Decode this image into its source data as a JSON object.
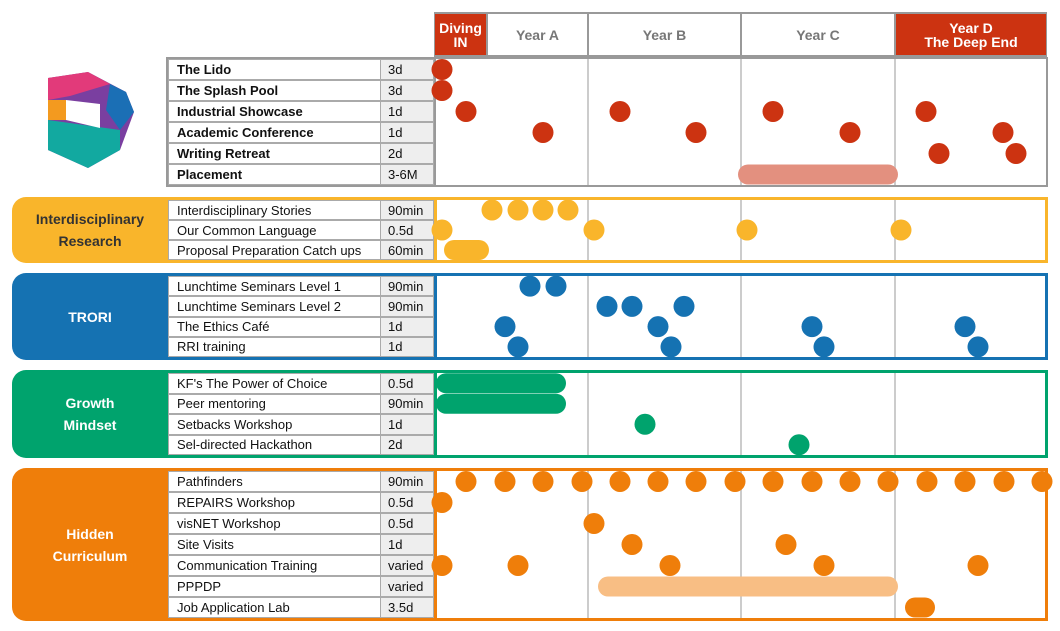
{
  "header": {
    "columns": [
      "Diving\nIN",
      "Year A",
      "Year B",
      "Year C",
      "Year D\nThe Deep End"
    ]
  },
  "sections": [
    {
      "rows": [
        {
          "name": "The Lido",
          "duration": "3d"
        },
        {
          "name": "The Splash Pool",
          "duration": "3d"
        },
        {
          "name": "Industrial Showcase",
          "duration": "1d"
        },
        {
          "name": "Academic Conference",
          "duration": "1d"
        },
        {
          "name": "Writing Retreat",
          "duration": "2d"
        },
        {
          "name": "Placement",
          "duration": "3-6M"
        }
      ]
    },
    {
      "label": "Interdisciplinary\nResearch",
      "rows": [
        {
          "name": "Interdisciplinary Stories",
          "duration": "90min"
        },
        {
          "name": "Our Common Language",
          "duration": "0.5d"
        },
        {
          "name": "Proposal Preparation Catch ups",
          "duration": "60min"
        }
      ]
    },
    {
      "label": "TRORI",
      "rows": [
        {
          "name": "Lunchtime  Seminars Level 1",
          "duration": "90min"
        },
        {
          "name": "Lunchtime Seminars Level 2",
          "duration": "90min"
        },
        {
          "name": "The Ethics Café",
          "duration": "1d"
        },
        {
          "name": "RRI training",
          "duration": "1d"
        }
      ]
    },
    {
      "label": "Growth\nMindset",
      "rows": [
        {
          "name": "KF's The Power of Choice",
          "duration": "0.5d"
        },
        {
          "name": "Peer mentoring",
          "duration": "90min"
        },
        {
          "name": "Setbacks Workshop",
          "duration": "1d"
        },
        {
          "name": "Sel-directed Hackathon",
          "duration": "2d"
        }
      ]
    },
    {
      "label": "Hidden\nCurriculum",
      "rows": [
        {
          "name": "Pathfinders",
          "duration": "90min"
        },
        {
          "name": "REPAIRS Workshop",
          "duration": "0.5d"
        },
        {
          "name": "visNET  Workshop",
          "duration": "0.5d"
        },
        {
          "name": "Site Visits",
          "duration": "1d"
        },
        {
          "name": "Communication Training",
          "duration": "varied"
        },
        {
          "name": "PPPDP",
          "duration": "varied"
        },
        {
          "name": "Job Application Lab",
          "duration": "3.5d"
        }
      ]
    }
  ]
}
